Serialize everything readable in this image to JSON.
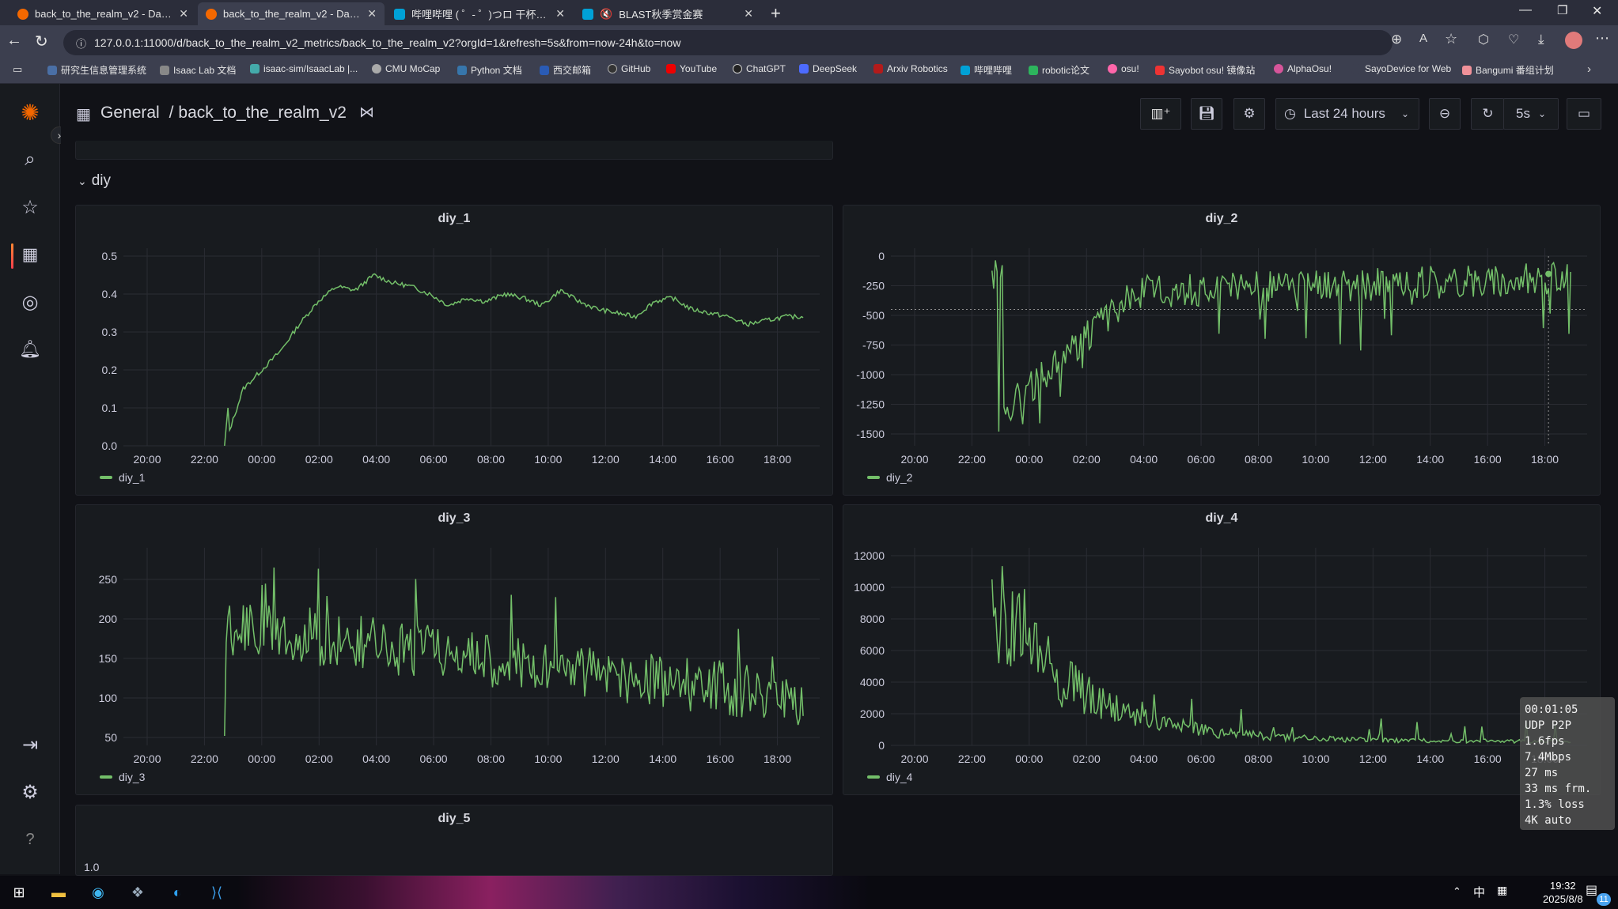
{
  "browser": {
    "tabs": [
      {
        "title": "back_to_the_realm_v2 - Dashboard",
        "active": false
      },
      {
        "title": "back_to_the_realm_v2 - Dashboard",
        "active": true
      },
      {
        "title": "哔哩哔哩 ( ゜- ゜)つロ 干杯~-bilibili",
        "active": false
      },
      {
        "title": "BLAST秋季赏金赛",
        "active": false
      }
    ],
    "url": "127.0.0.1:11000/d/back_to_the_realm_v2_metrics/back_to_the_realm_v2?orgId=1&refresh=5s&from=now-24h&to=now",
    "bookmarks": [
      "研究生信息管理系统",
      "Isaac Lab 文档",
      "isaac-sim/IsaacLab |...",
      "CMU MoCap",
      "Python 文档",
      "西交邮箱",
      "GitHub",
      "YouTube",
      "ChatGPT",
      "DeepSeek",
      "Arxiv Robotics",
      "哔哩哔哩",
      "robotic论文",
      "osu!",
      "Sayobot osu! 镜像站",
      "AlphaOsu!",
      "SayoDevice for Web",
      "Bangumi 番组计划"
    ]
  },
  "header": {
    "breadcrumb_root": "General",
    "breadcrumb_sep": "/",
    "dashboard_title": "back_to_the_realm_v2",
    "time_range": "Last 24 hours",
    "refresh_interval": "5s"
  },
  "row": {
    "title": "diy"
  },
  "x_ticks": [
    "20:00",
    "22:00",
    "00:00",
    "02:00",
    "04:00",
    "06:00",
    "08:00",
    "10:00",
    "12:00",
    "14:00",
    "16:00",
    "18:00"
  ],
  "overlay": {
    "lines": [
      "00:01:05",
      "UDP P2P",
      "1.6fps",
      "7.4Mbps",
      "27 ms",
      "33 ms frm.",
      "1.3% loss",
      "4K auto"
    ]
  },
  "taskbar": {
    "time": "19:32",
    "date": "2025/8/8",
    "ime": "中",
    "notif_count": "11"
  },
  "colors": {
    "series": "#73bf69",
    "bg": "#111217",
    "panel": "#181b1f"
  },
  "chart_data": [
    {
      "type": "line",
      "title": "diy_1",
      "series": [
        {
          "name": "diy_1"
        }
      ],
      "ylim": [
        0,
        0.5
      ],
      "yticks": [
        "0.0",
        "0.1",
        "0.2",
        "0.3",
        "0.4",
        "0.5"
      ],
      "x": [
        "20:00",
        "22:00",
        "22:40",
        "23:00",
        "00:00",
        "01:00",
        "02:00",
        "02:30",
        "03:00",
        "03:30",
        "04:00",
        "04:30",
        "05:00",
        "05:30",
        "06:00",
        "06:30",
        "07:00",
        "08:00",
        "09:00",
        "09:30",
        "10:00",
        "10:30",
        "11:00",
        "12:00",
        "12:30",
        "13:00",
        "14:00",
        "15:00",
        "16:00",
        "17:00",
        "18:00",
        "18:30",
        "19:00",
        "19:30"
      ],
      "values": [
        null,
        null,
        0.0,
        0.15,
        0.2,
        0.25,
        0.32,
        0.38,
        0.42,
        0.41,
        0.45,
        0.43,
        0.42,
        0.4,
        0.37,
        0.39,
        0.38,
        0.4,
        0.39,
        0.37,
        0.41,
        0.38,
        0.36,
        0.35,
        0.34,
        0.38,
        0.39,
        0.36,
        0.35,
        0.34,
        0.32,
        0.33,
        0.34,
        0.34
      ]
    },
    {
      "type": "line",
      "title": "diy_2",
      "series": [
        {
          "name": "diy_2"
        }
      ],
      "ylim": [
        -1600,
        0
      ],
      "yticks": [
        "0",
        "-250",
        "-500",
        "-750",
        "-1000",
        "-1250",
        "-1500"
      ]
    },
    {
      "type": "line",
      "title": "diy_3",
      "series": [
        {
          "name": "diy_3"
        }
      ],
      "ylim": [
        40,
        280
      ],
      "yticks": [
        "250",
        "200",
        "150",
        "100",
        "50"
      ]
    },
    {
      "type": "line",
      "title": "diy_4",
      "series": [
        {
          "name": "diy_4"
        }
      ],
      "ylim": [
        0,
        12000
      ],
      "yticks": [
        "12000",
        "10000",
        "8000",
        "6000",
        "4000",
        "2000",
        "0"
      ]
    },
    {
      "type": "line",
      "title": "diy_5",
      "yticks": [
        "1.0"
      ]
    }
  ]
}
